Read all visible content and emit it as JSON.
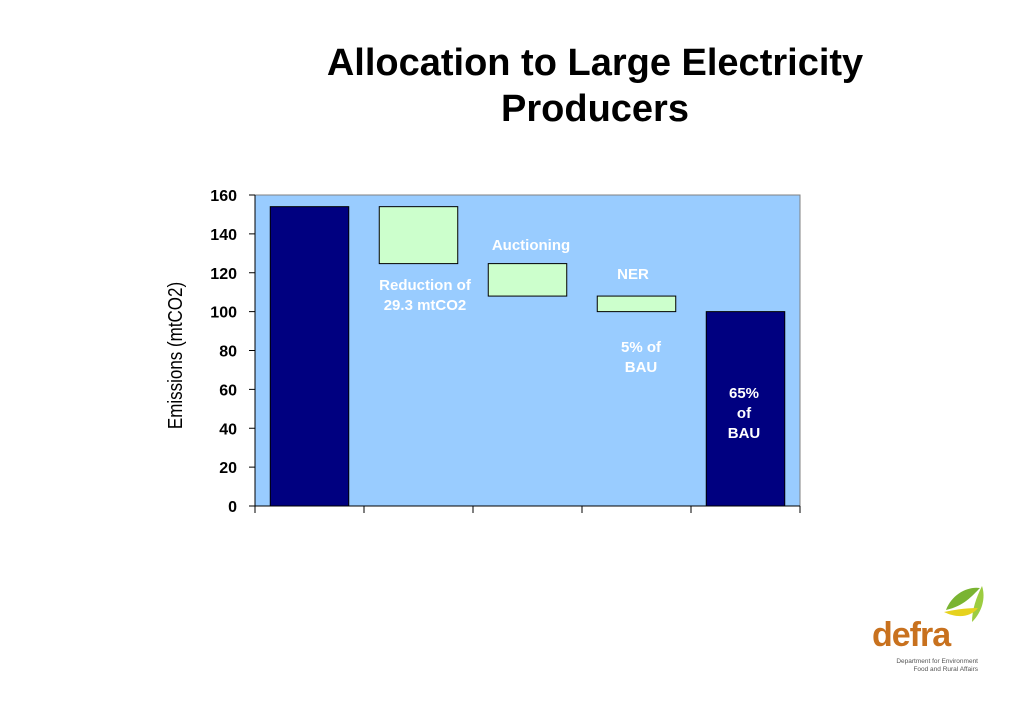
{
  "title": "Allocation to Large Electricity Producers",
  "colors": {
    "plot_background": "#99ccff",
    "solid_bar": "#000080",
    "float_bar": "#ccffcc",
    "annotation_text": "#ffffff",
    "logo_orange": "#c8711e",
    "logo_green": "#7ab432"
  },
  "chart_data": {
    "type": "bar",
    "subtype": "waterfall",
    "ylabel": "Emissions (mtCO2)",
    "xlabel": "",
    "ylim": [
      0,
      160
    ],
    "yticks": [
      0,
      20,
      40,
      60,
      80,
      100,
      120,
      140,
      160
    ],
    "grid": false,
    "bars": [
      {
        "base": 0,
        "top": 154,
        "style": "solid"
      },
      {
        "base": 124.7,
        "top": 154,
        "style": "float"
      },
      {
        "base": 108,
        "top": 124.7,
        "style": "float"
      },
      {
        "base": 100,
        "top": 108,
        "style": "float"
      },
      {
        "base": 0,
        "top": 100,
        "style": "solid"
      }
    ],
    "annotations": [
      {
        "bar": 1,
        "lines": [
          "Reduction of",
          "29.3 mtCO2"
        ]
      },
      {
        "bar": 2,
        "lines": [
          "Auctioning"
        ]
      },
      {
        "bar": 3,
        "lines": [
          "NER"
        ]
      },
      {
        "bar": 3,
        "lines": [
          "5% of",
          "BAU"
        ]
      },
      {
        "bar": 4,
        "lines": [
          "65%",
          "of",
          "BAU"
        ]
      }
    ]
  },
  "logo": {
    "name": "defra",
    "line1": "Department for Environment",
    "line2": "Food and Rural Affairs"
  }
}
